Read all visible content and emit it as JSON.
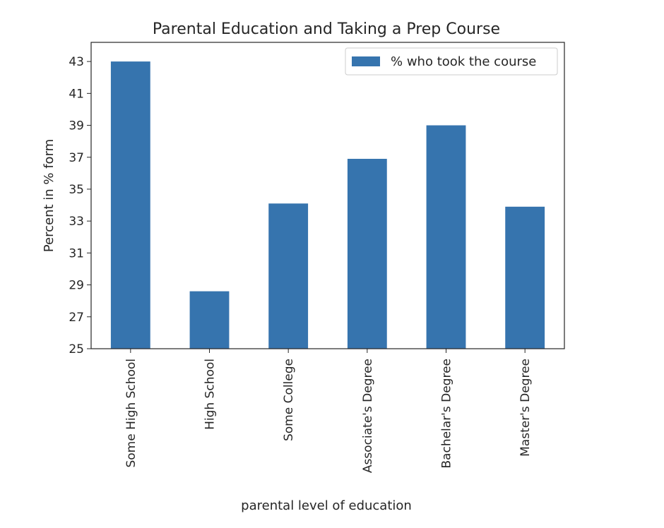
{
  "chart_data": {
    "type": "bar",
    "title": "Parental Education and Taking a Prep Course",
    "xlabel": "parental level of education",
    "ylabel": "Percent in % form",
    "categories": [
      "Some High School",
      "High School",
      "Some College",
      "Associate's Degree",
      "Bachelar's Degree",
      "Master's Degree"
    ],
    "series": [
      {
        "name": "% who took the course",
        "values": [
          43.0,
          28.6,
          34.1,
          36.9,
          39.0,
          33.9
        ]
      }
    ],
    "ylim": [
      25,
      44.2
    ],
    "yticks": [
      25,
      27,
      29,
      31,
      33,
      35,
      37,
      39,
      41,
      43
    ],
    "grid": false,
    "legend_position": "top-right",
    "colors": {
      "bar": "#3674ae",
      "axis": "#262626",
      "background": "#ffffff"
    }
  }
}
